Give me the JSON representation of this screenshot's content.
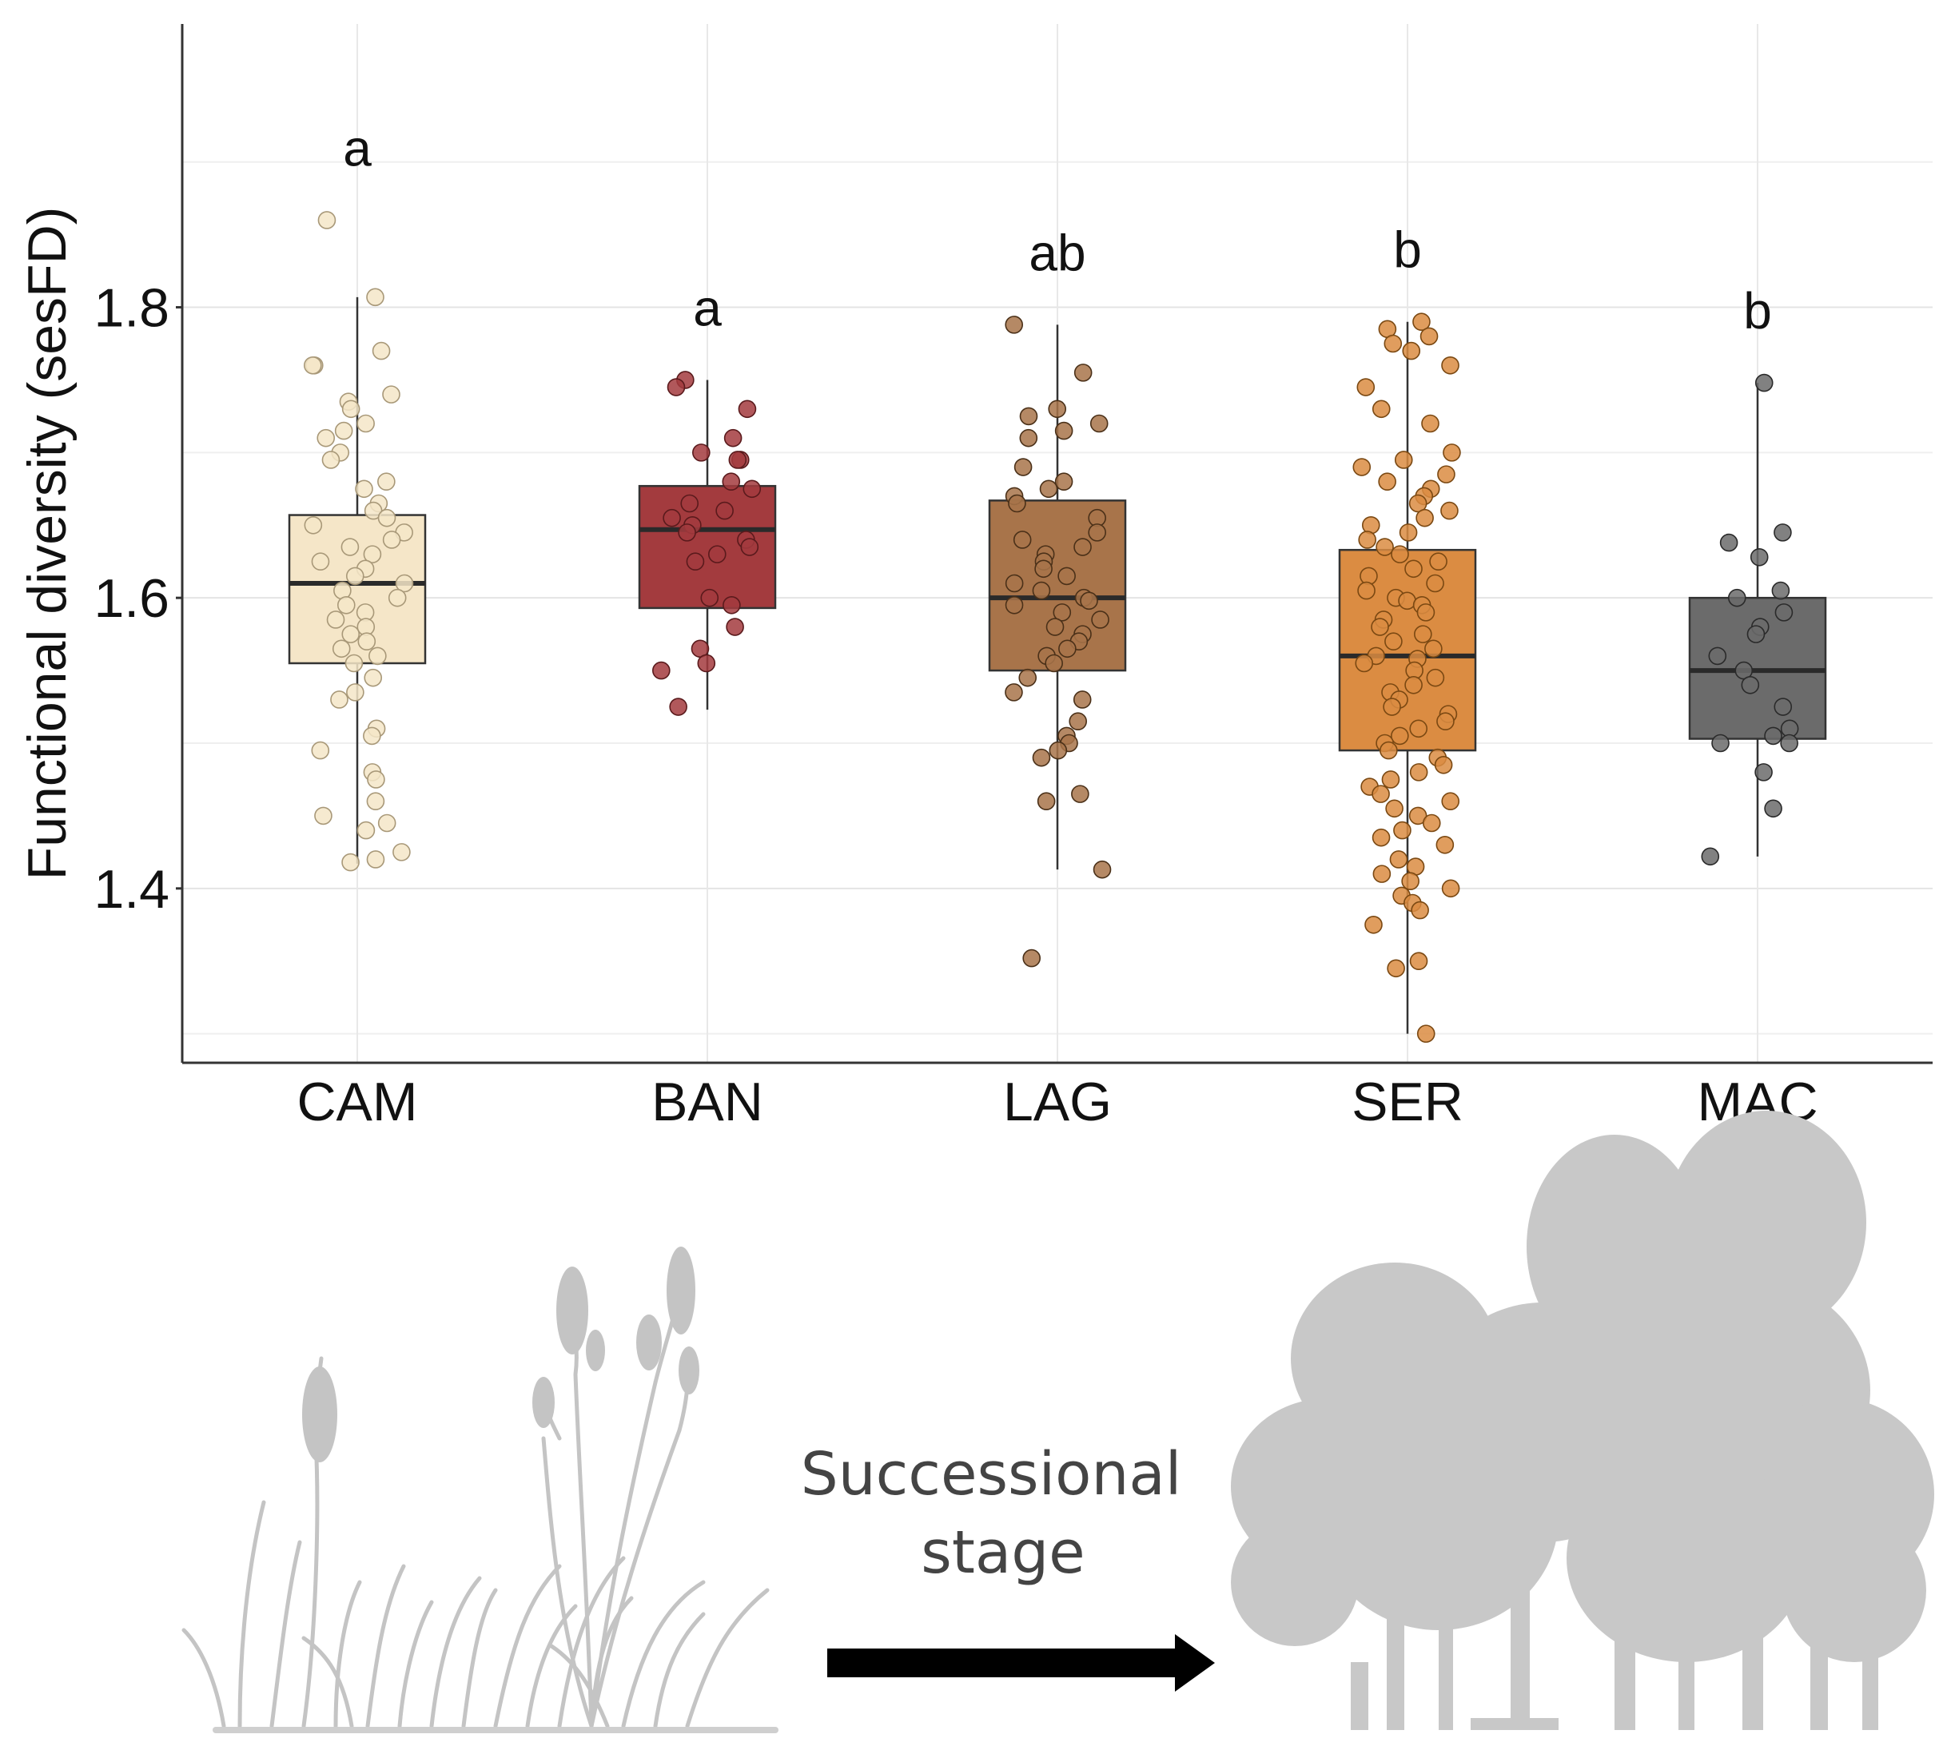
{
  "chart_data": {
    "type": "boxplot",
    "title": "",
    "xlabel": "",
    "ylabel": "Functional diversity (sesFD)",
    "ylim": [
      1.28,
      1.995
    ],
    "yticks": [
      1.4,
      1.6,
      1.8
    ],
    "ytick_labels": [
      "1.4",
      "1.6",
      "1.8"
    ],
    "grid": true,
    "categories": [
      "CAM",
      "BAN",
      "LAG",
      "SER",
      "MAC"
    ],
    "groups": [
      {
        "name": "CAM",
        "color": "#f5e6c8",
        "edge": "#a89878",
        "letter": "a",
        "min": 1.417,
        "q1": 1.555,
        "median": 1.61,
        "q3": 1.657,
        "max": 1.807,
        "outliers": [
          1.86
        ],
        "points": [
          1.86,
          1.807,
          1.77,
          1.76,
          1.76,
          1.74,
          1.735,
          1.73,
          1.72,
          1.715,
          1.71,
          1.7,
          1.695,
          1.68,
          1.675,
          1.665,
          1.66,
          1.655,
          1.65,
          1.645,
          1.64,
          1.635,
          1.63,
          1.625,
          1.62,
          1.615,
          1.61,
          1.605,
          1.6,
          1.595,
          1.59,
          1.585,
          1.58,
          1.575,
          1.57,
          1.565,
          1.56,
          1.555,
          1.545,
          1.535,
          1.53,
          1.51,
          1.505,
          1.495,
          1.48,
          1.475,
          1.46,
          1.45,
          1.445,
          1.44,
          1.425,
          1.42,
          1.418
        ]
      },
      {
        "name": "BAN",
        "color": "#a33b3e",
        "edge": "#5a1a1c",
        "letter": "a",
        "min": 1.523,
        "q1": 1.593,
        "median": 1.647,
        "q3": 1.677,
        "max": 1.75,
        "outliers": [],
        "points": [
          1.75,
          1.745,
          1.73,
          1.71,
          1.7,
          1.695,
          1.695,
          1.68,
          1.675,
          1.665,
          1.66,
          1.655,
          1.65,
          1.645,
          1.64,
          1.635,
          1.63,
          1.625,
          1.6,
          1.595,
          1.58,
          1.565,
          1.555,
          1.55,
          1.525
        ]
      },
      {
        "name": "LAG",
        "color": "#a8744a",
        "edge": "#4a3018",
        "letter": "ab",
        "min": 1.413,
        "q1": 1.55,
        "median": 1.6,
        "q3": 1.667,
        "max": 1.788,
        "outliers": [
          1.352
        ],
        "points": [
          1.788,
          1.755,
          1.73,
          1.725,
          1.72,
          1.715,
          1.71,
          1.69,
          1.68,
          1.675,
          1.67,
          1.665,
          1.655,
          1.645,
          1.64,
          1.635,
          1.63,
          1.625,
          1.62,
          1.615,
          1.61,
          1.605,
          1.6,
          1.598,
          1.595,
          1.59,
          1.585,
          1.58,
          1.575,
          1.57,
          1.565,
          1.56,
          1.555,
          1.545,
          1.535,
          1.53,
          1.515,
          1.505,
          1.5,
          1.495,
          1.49,
          1.465,
          1.46,
          1.413,
          1.352
        ]
      },
      {
        "name": "SER",
        "color": "#db8c42",
        "edge": "#7a4812",
        "letter": "b",
        "min": 1.3,
        "q1": 1.495,
        "median": 1.56,
        "q3": 1.633,
        "max": 1.79,
        "outliers": [],
        "points": [
          1.79,
          1.785,
          1.78,
          1.775,
          1.77,
          1.76,
          1.745,
          1.73,
          1.72,
          1.7,
          1.695,
          1.69,
          1.685,
          1.68,
          1.675,
          1.67,
          1.665,
          1.66,
          1.655,
          1.65,
          1.645,
          1.64,
          1.635,
          1.63,
          1.625,
          1.62,
          1.615,
          1.61,
          1.605,
          1.6,
          1.598,
          1.595,
          1.59,
          1.585,
          1.58,
          1.575,
          1.57,
          1.565,
          1.56,
          1.558,
          1.555,
          1.55,
          1.545,
          1.54,
          1.535,
          1.53,
          1.525,
          1.52,
          1.515,
          1.51,
          1.505,
          1.5,
          1.495,
          1.49,
          1.485,
          1.48,
          1.475,
          1.47,
          1.465,
          1.46,
          1.455,
          1.45,
          1.445,
          1.44,
          1.435,
          1.43,
          1.42,
          1.415,
          1.41,
          1.405,
          1.4,
          1.395,
          1.39,
          1.385,
          1.375,
          1.35,
          1.345,
          1.3
        ]
      },
      {
        "name": "MAC",
        "color": "#6b6b6b",
        "edge": "#2a2a2a",
        "letter": "b",
        "min": 1.422,
        "q1": 1.503,
        "median": 1.55,
        "q3": 1.6,
        "max": 1.748,
        "outliers": [],
        "points": [
          1.748,
          1.645,
          1.638,
          1.628,
          1.605,
          1.6,
          1.59,
          1.58,
          1.575,
          1.56,
          1.55,
          1.54,
          1.525,
          1.51,
          1.505,
          1.5,
          1.5,
          1.48,
          1.455,
          1.422
        ]
      }
    ]
  },
  "illustration": {
    "stage_label_line1": "Successional",
    "stage_label_line2": "stage",
    "left_icon": "grassland-icon",
    "right_icon": "forest-icon",
    "arrow_icon": "arrow-right-icon"
  }
}
